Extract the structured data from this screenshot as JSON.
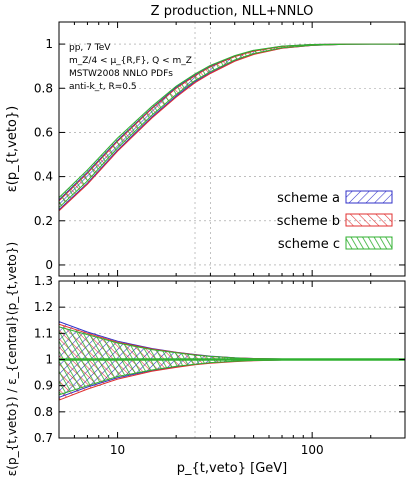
{
  "chart_data": {
    "type": "area",
    "title": "Z production, NLL+NNLO",
    "xlabel": "p_{t,veto} [GeV]",
    "x_scale": "log",
    "xlim": [
      5,
      300
    ],
    "x_ticks": [
      {
        "value": 10,
        "label": "10"
      },
      {
        "value": 100,
        "label": "100"
      }
    ],
    "reference_lines_x": [
      25,
      30
    ],
    "info_lines": [
      "pp, 7 TeV",
      "m_Z/4 < μ_{R,F}, Q < m_Z",
      "MSTW2008 NNLO PDFs",
      "anti-k_t, R=0.5"
    ],
    "legend_position": "right, lower half of top panel",
    "top_panel": {
      "ylabel": "ε(p_{t,veto})",
      "ylim": [
        -0.05,
        1.1
      ],
      "yticks": [
        "0",
        "0.2",
        "0.4",
        "0.6",
        "0.8",
        "1"
      ],
      "series": [
        {
          "name": "scheme a",
          "color": "#3030c8",
          "x": [
            5,
            7,
            10,
            15,
            20,
            25,
            30,
            40,
            50,
            70,
            100,
            150,
            200,
            300
          ],
          "lower": [
            0.25,
            0.37,
            0.52,
            0.67,
            0.765,
            0.83,
            0.87,
            0.925,
            0.955,
            0.982,
            0.994,
            0.999,
            1.0,
            1.0
          ],
          "upper": [
            0.295,
            0.42,
            0.565,
            0.71,
            0.805,
            0.86,
            0.9,
            0.945,
            0.97,
            0.99,
            0.998,
            1.0,
            1.0,
            1.0
          ]
        },
        {
          "name": "scheme b",
          "color": "#e03030",
          "x": [
            5,
            7,
            10,
            15,
            20,
            25,
            30,
            40,
            50,
            70,
            100,
            150,
            200,
            300
          ],
          "lower": [
            0.245,
            0.365,
            0.515,
            0.665,
            0.76,
            0.825,
            0.867,
            0.922,
            0.953,
            0.981,
            0.994,
            0.999,
            1.0,
            1.0
          ],
          "upper": [
            0.29,
            0.415,
            0.56,
            0.707,
            0.8,
            0.857,
            0.897,
            0.943,
            0.968,
            0.989,
            0.998,
            1.0,
            1.0,
            1.0
          ]
        },
        {
          "name": "scheme c",
          "color": "#30b030",
          "x": [
            5,
            7,
            10,
            15,
            20,
            25,
            30,
            40,
            50,
            70,
            100,
            150,
            200,
            300
          ],
          "lower": [
            0.26,
            0.38,
            0.53,
            0.678,
            0.772,
            0.835,
            0.875,
            0.928,
            0.957,
            0.983,
            0.995,
            0.999,
            1.0,
            1.0
          ],
          "upper": [
            0.305,
            0.43,
            0.575,
            0.718,
            0.81,
            0.865,
            0.904,
            0.948,
            0.972,
            0.991,
            0.998,
            1.0,
            1.0,
            1.0
          ]
        }
      ]
    },
    "bottom_panel": {
      "ylabel": "ε(p_{t,veto}) / ε_{central}(p_{t,veto})",
      "ylim": [
        0.7,
        1.3
      ],
      "yticks": [
        "0.7",
        "0.8",
        "0.9",
        "1",
        "1.1",
        "1.2",
        "1.3"
      ],
      "reference_line_y": 1,
      "series": [
        {
          "name": "scheme a",
          "color": "#3030c8",
          "x": [
            5,
            7,
            10,
            15,
            20,
            25,
            30,
            40,
            50,
            70,
            100,
            150,
            200,
            300
          ],
          "lower": [
            0.855,
            0.895,
            0.93,
            0.958,
            0.972,
            0.981,
            0.987,
            0.993,
            0.996,
            0.998,
            0.999,
            1.0,
            1.0,
            1.0
          ],
          "upper": [
            1.145,
            1.105,
            1.07,
            1.042,
            1.028,
            1.019,
            1.013,
            1.007,
            1.004,
            1.002,
            1.001,
            1.0,
            1.0,
            1.0
          ]
        },
        {
          "name": "scheme b",
          "color": "#e03030",
          "x": [
            5,
            7,
            10,
            15,
            20,
            25,
            30,
            40,
            50,
            70,
            100,
            150,
            200,
            300
          ],
          "lower": [
            0.845,
            0.887,
            0.925,
            0.955,
            0.97,
            0.98,
            0.986,
            0.992,
            0.995,
            0.998,
            0.999,
            1.0,
            1.0,
            1.0
          ],
          "upper": [
            1.135,
            1.1,
            1.066,
            1.04,
            1.027,
            1.018,
            1.012,
            1.006,
            1.004,
            1.002,
            1.001,
            1.0,
            1.0,
            1.0
          ]
        },
        {
          "name": "scheme c",
          "color": "#30b030",
          "x": [
            5,
            7,
            10,
            15,
            20,
            25,
            30,
            40,
            50,
            70,
            100,
            150,
            200,
            300
          ],
          "lower": [
            0.865,
            0.9,
            0.935,
            0.96,
            0.974,
            0.982,
            0.988,
            0.993,
            0.996,
            0.998,
            0.999,
            1.0,
            1.0,
            1.0
          ],
          "upper": [
            1.125,
            1.095,
            1.063,
            1.038,
            1.026,
            1.017,
            1.012,
            1.006,
            1.003,
            1.002,
            1.001,
            1.0,
            1.0,
            1.0
          ]
        }
      ]
    }
  }
}
